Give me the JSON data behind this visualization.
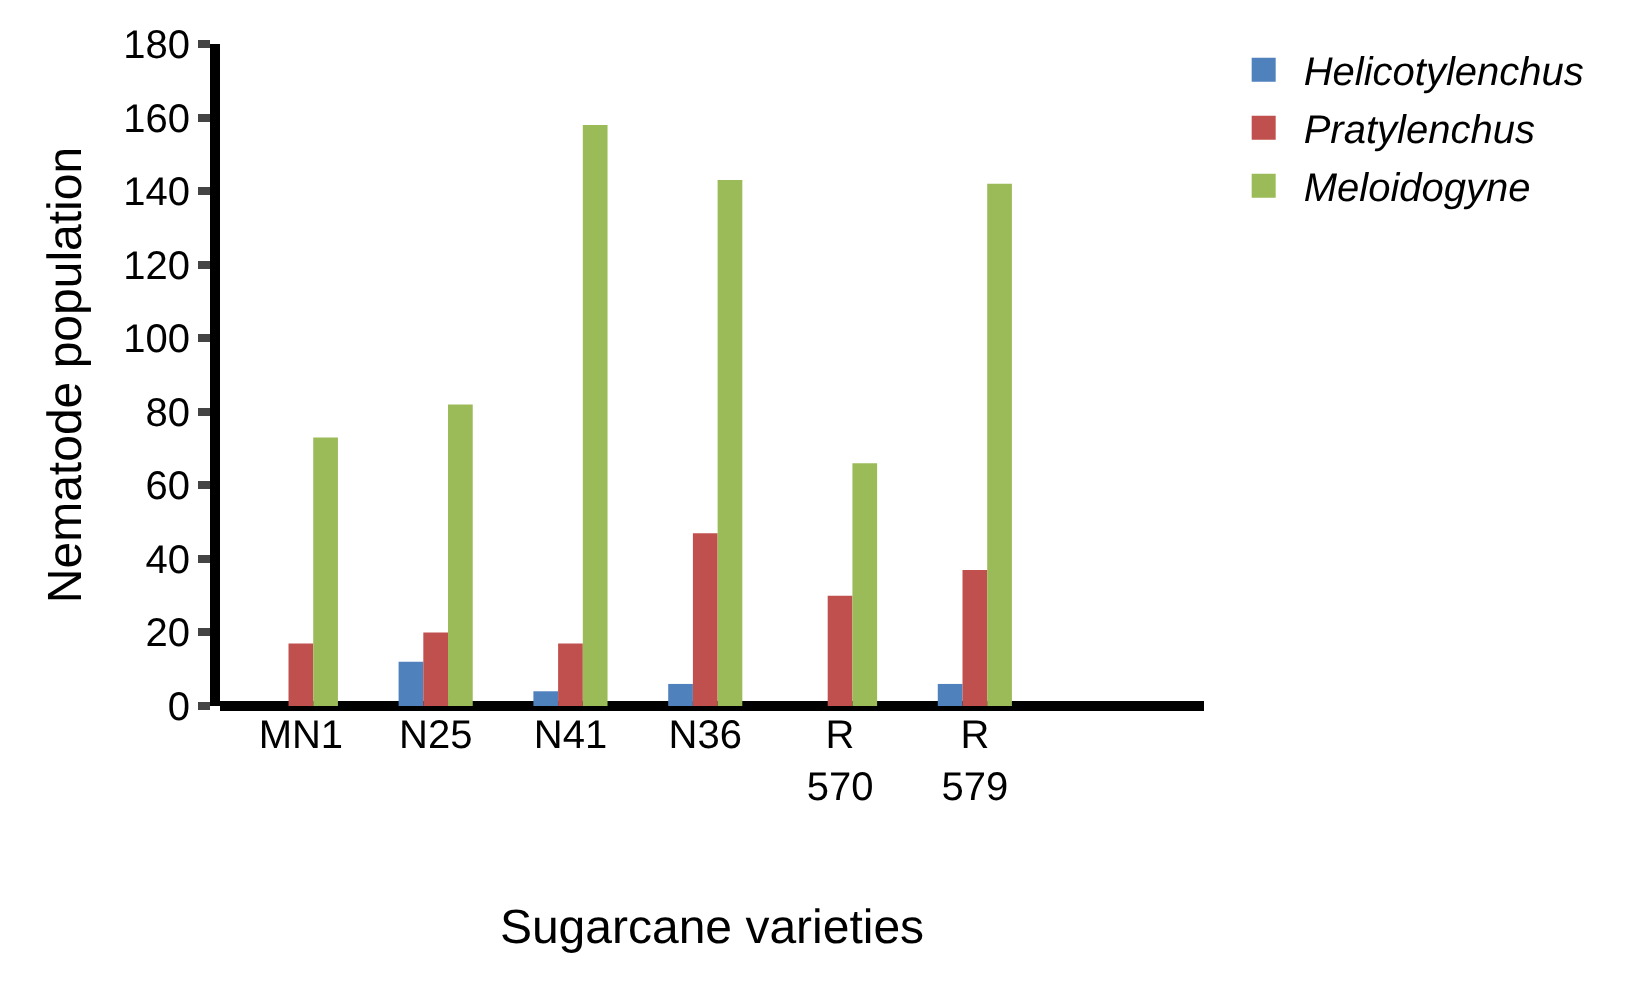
{
  "chart_data": {
    "type": "bar",
    "xlabel": "Sugarcane varieties",
    "ylabel": "Nematode population",
    "categories": [
      "MN1",
      "N25",
      "N41",
      "N36",
      "R 570",
      "R 579",
      null
    ],
    "series": [
      {
        "name": "Helicotylenchus",
        "color": "#4f81bd",
        "values": [
          0,
          12,
          4,
          6,
          0,
          6,
          null
        ]
      },
      {
        "name": "Pratylenchus",
        "color": "#c0504d",
        "values": [
          17,
          20,
          17,
          47,
          30,
          37,
          null
        ]
      },
      {
        "name": "Meloidogyne",
        "color": "#9bbb59",
        "values": [
          73,
          82,
          158,
          143,
          66,
          142,
          null
        ]
      }
    ],
    "ylim": [
      0,
      180
    ],
    "yticks": [
      0,
      20,
      40,
      60,
      80,
      100,
      120,
      140,
      160,
      180
    ],
    "legend": "top right"
  }
}
